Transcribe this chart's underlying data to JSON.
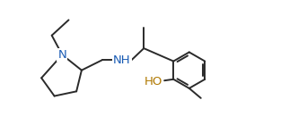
{
  "background": "#ffffff",
  "line_color": "#2a2a2a",
  "lw": 1.4,
  "N_color": "#1a5cb5",
  "NH_color": "#1a5cb5",
  "HO_color": "#b07800",
  "Me_color": "#2a2a2a",
  "xlim": [
    0,
    10.5
  ],
  "ylim": [
    0,
    4.8
  ],
  "figsize": [
    3.32,
    1.4
  ],
  "dpi": 100
}
